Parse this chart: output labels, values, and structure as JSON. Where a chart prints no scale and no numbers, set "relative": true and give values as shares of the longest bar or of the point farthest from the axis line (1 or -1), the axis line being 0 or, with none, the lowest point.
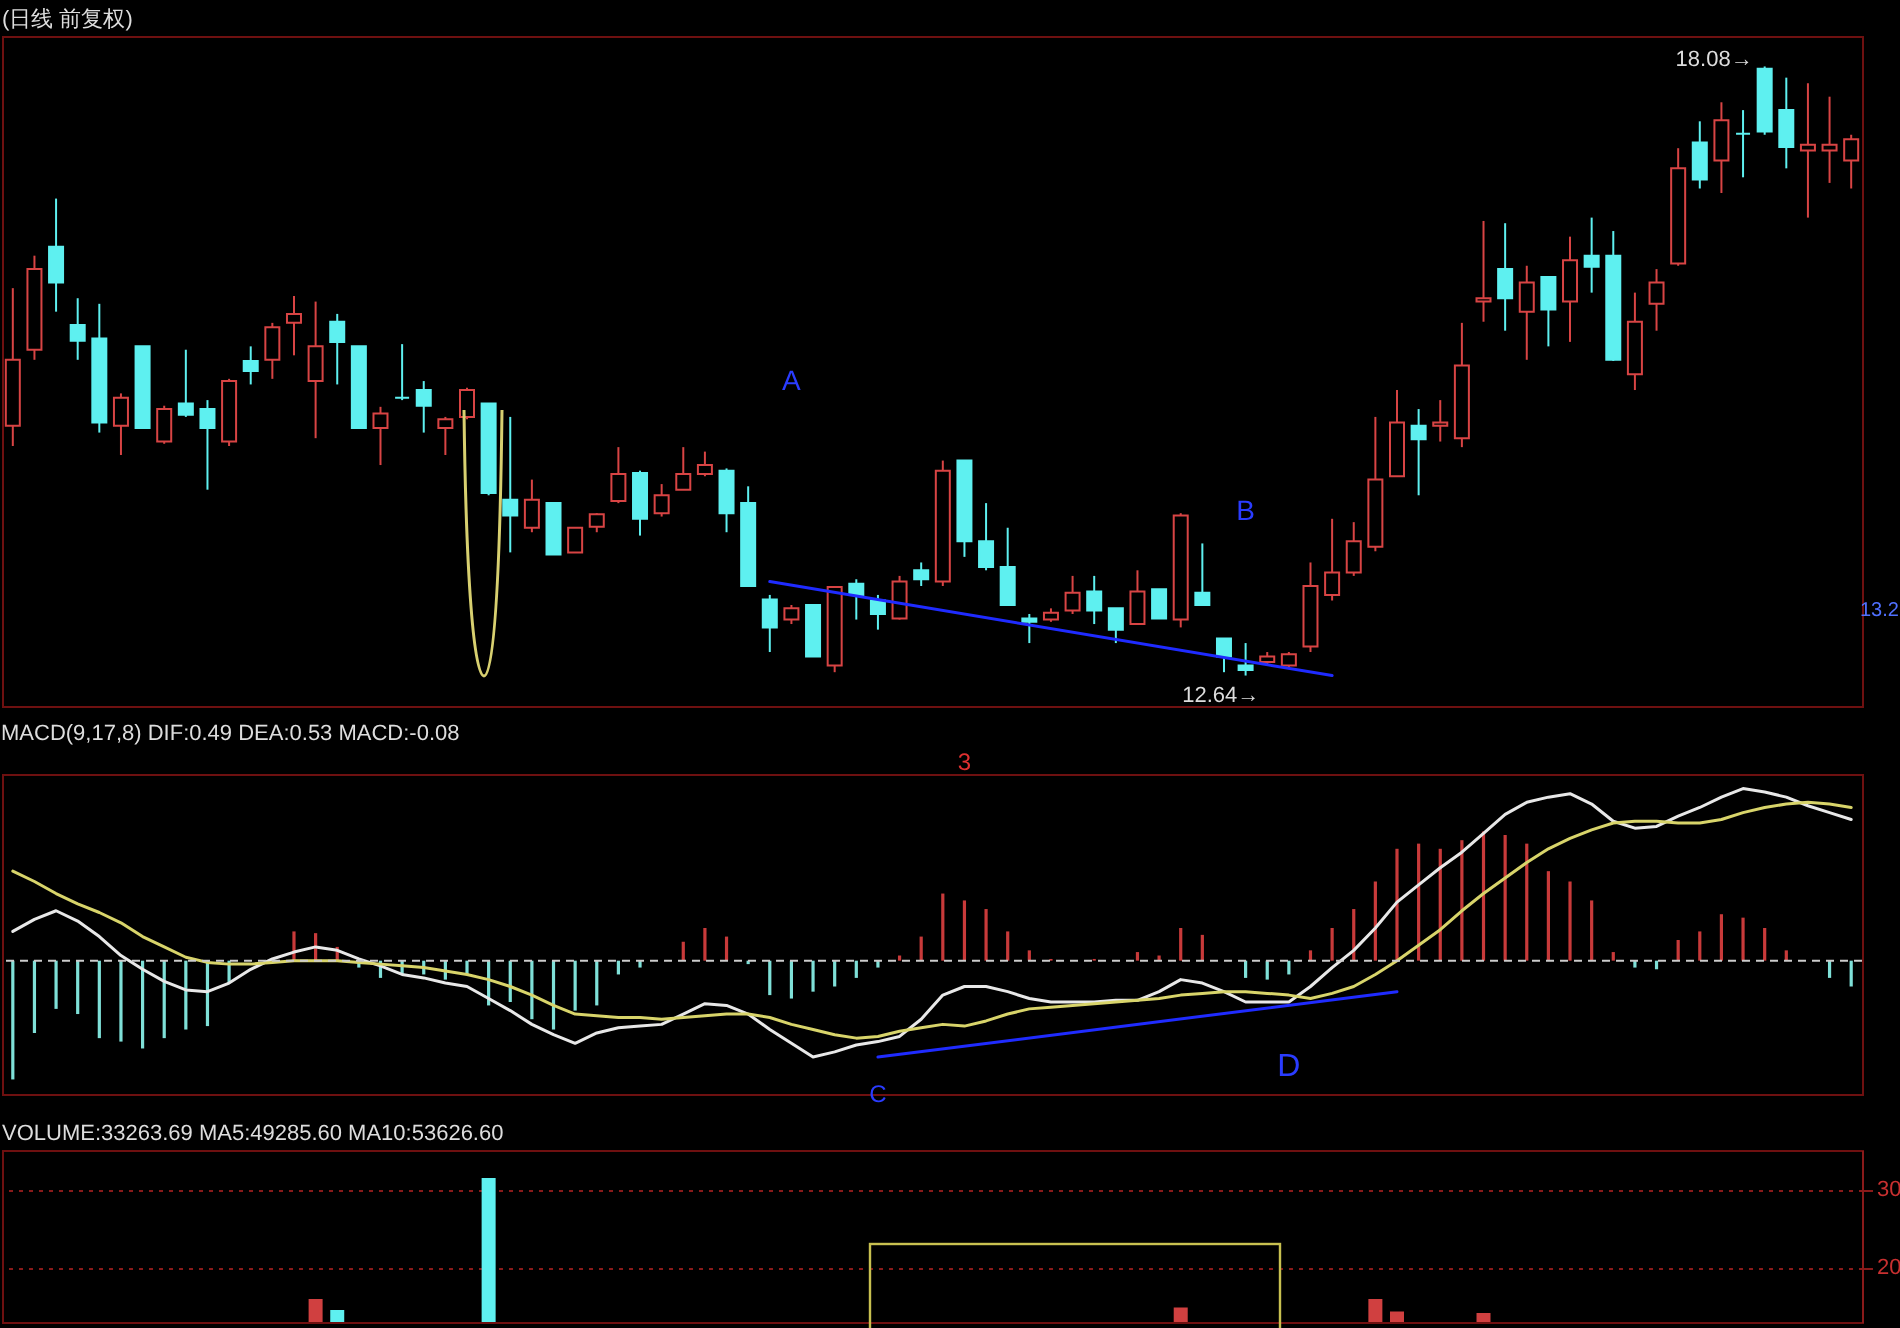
{
  "chart_data": [
    {
      "type": "candlestick",
      "title": "(日线 前复权)",
      "tick_labels": false,
      "categories": [
        null,
        null,
        null,
        null,
        null,
        null,
        null,
        null,
        null,
        null,
        null,
        null,
        null,
        null,
        null,
        null,
        null,
        null,
        null,
        null,
        null,
        null,
        null,
        null,
        null,
        null,
        null,
        null,
        null,
        null,
        null,
        null,
        null,
        null,
        null,
        null,
        null,
        null,
        null,
        null,
        null,
        null,
        null,
        null,
        null,
        null,
        null,
        null,
        null,
        null,
        null,
        null,
        null,
        null,
        null,
        null,
        null,
        null,
        null,
        null,
        null,
        null,
        null,
        null,
        null,
        null,
        null,
        null,
        null,
        null,
        null,
        null,
        null,
        null,
        null,
        null,
        null,
        null,
        null,
        null,
        null,
        null,
        null,
        null,
        null,
        null
      ],
      "ohlc": [
        [
          14.87,
          16.1,
          14.69,
          15.46
        ],
        [
          15.55,
          16.39,
          15.46,
          16.27
        ],
        [
          16.47,
          16.9,
          15.89,
          16.15
        ],
        [
          15.77,
          16.01,
          15.46,
          15.63
        ],
        [
          15.65,
          15.96,
          14.81,
          14.9
        ],
        [
          14.87,
          15.16,
          14.61,
          15.12
        ],
        [
          15.58,
          15.58,
          14.85,
          14.85
        ],
        [
          14.73,
          15.05,
          14.71,
          15.02
        ],
        [
          15.07,
          15.55,
          14.95,
          14.97
        ],
        [
          15.02,
          15.1,
          14.3,
          14.85
        ],
        [
          14.73,
          15.29,
          14.69,
          15.27
        ],
        [
          15.45,
          15.58,
          15.24,
          15.36
        ],
        [
          15.46,
          15.79,
          15.29,
          15.75
        ],
        [
          15.79,
          16.03,
          15.5,
          15.87
        ],
        [
          15.27,
          15.98,
          14.76,
          15.58
        ],
        [
          15.8,
          15.87,
          15.24,
          15.62
        ],
        [
          15.58,
          15.58,
          14.85,
          14.85
        ],
        [
          14.85,
          15.04,
          14.52,
          14.98
        ],
        [
          15.12,
          15.6,
          15.1,
          15.12
        ],
        [
          15.19,
          15.27,
          14.81,
          15.05
        ],
        [
          14.85,
          14.95,
          14.61,
          14.93
        ],
        [
          14.95,
          15.21,
          14.93,
          15.19
        ],
        [
          15.07,
          15.07,
          14.25,
          14.27
        ],
        [
          14.21,
          14.95,
          13.74,
          14.07
        ],
        [
          13.96,
          14.39,
          13.92,
          14.21
        ],
        [
          14.18,
          14.18,
          13.72,
          13.72
        ],
        [
          13.74,
          13.96,
          13.74,
          13.96
        ],
        [
          13.97,
          14.09,
          13.92,
          14.08
        ],
        [
          14.2,
          14.68,
          14.18,
          14.44
        ],
        [
          14.45,
          14.47,
          13.89,
          14.04
        ],
        [
          14.09,
          14.35,
          14.06,
          14.25
        ],
        [
          14.3,
          14.68,
          14.3,
          14.44
        ],
        [
          14.44,
          14.64,
          14.42,
          14.52
        ],
        [
          14.47,
          14.49,
          13.92,
          14.09
        ],
        [
          14.18,
          14.33,
          13.44,
          13.44
        ],
        [
          13.32,
          13.36,
          12.85,
          13.07
        ],
        [
          13.14,
          13.27,
          13.1,
          13.24
        ],
        [
          13.27,
          13.27,
          12.81,
          12.81
        ],
        [
          12.73,
          13.44,
          12.67,
          13.43
        ],
        [
          13.46,
          13.5,
          13.14,
          13.36
        ],
        [
          13.31,
          13.36,
          13.05,
          13.19
        ],
        [
          13.15,
          13.53,
          13.14,
          13.48
        ],
        [
          13.58,
          13.65,
          13.44,
          13.5
        ],
        [
          13.48,
          14.56,
          13.44,
          14.47
        ],
        [
          14.56,
          14.56,
          13.7,
          13.84
        ],
        [
          13.84,
          14.18,
          13.58,
          13.61
        ],
        [
          13.61,
          13.96,
          13.27,
          13.27
        ],
        [
          13.15,
          13.19,
          12.93,
          13.12
        ],
        [
          13.14,
          13.24,
          13.12,
          13.2
        ],
        [
          13.22,
          13.53,
          13.19,
          13.38
        ],
        [
          13.39,
          13.53,
          13.1,
          13.22
        ],
        [
          13.24,
          13.24,
          12.93,
          13.05
        ],
        [
          13.1,
          13.58,
          13.1,
          13.39
        ],
        [
          13.41,
          13.41,
          13.15,
          13.15
        ],
        [
          13.14,
          14.09,
          13.07,
          14.07
        ],
        [
          13.38,
          13.82,
          13.27,
          13.27
        ],
        [
          12.97,
          12.97,
          12.67,
          12.81
        ],
        [
          12.73,
          12.93,
          12.64,
          12.69
        ],
        [
          12.76,
          12.85,
          12.74,
          12.81
        ],
        [
          12.73,
          12.85,
          12.71,
          12.83
        ],
        [
          12.9,
          13.65,
          12.85,
          13.44
        ],
        [
          13.36,
          14.04,
          13.31,
          13.56
        ],
        [
          13.56,
          14.01,
          13.53,
          13.84
        ],
        [
          13.79,
          14.95,
          13.75,
          14.39
        ],
        [
          14.42,
          15.19,
          14.42,
          14.9
        ],
        [
          14.87,
          15.02,
          14.25,
          14.75
        ],
        [
          14.87,
          15.1,
          14.73,
          14.9
        ],
        [
          14.76,
          15.79,
          14.68,
          15.41
        ],
        [
          15.98,
          16.7,
          15.8,
          16.01
        ],
        [
          16.27,
          16.68,
          15.72,
          16.01
        ],
        [
          15.89,
          16.3,
          15.46,
          16.15
        ],
        [
          16.2,
          16.2,
          15.58,
          15.91
        ],
        [
          15.98,
          16.56,
          15.62,
          16.35
        ],
        [
          16.39,
          16.73,
          16.06,
          16.29
        ],
        [
          16.39,
          16.61,
          15.45,
          15.46
        ],
        [
          15.33,
          16.06,
          15.19,
          15.8
        ],
        [
          15.96,
          16.27,
          15.72,
          16.15
        ],
        [
          16.32,
          17.35,
          16.3,
          17.17
        ],
        [
          17.4,
          17.59,
          16.99,
          17.07
        ],
        [
          17.24,
          17.76,
          16.95,
          17.6
        ],
        [
          17.48,
          17.69,
          17.09,
          17.48
        ],
        [
          18.06,
          18.08,
          17.47,
          17.5
        ],
        [
          17.69,
          17.98,
          17.17,
          17.36
        ],
        [
          17.33,
          17.93,
          16.73,
          17.38
        ],
        [
          17.33,
          17.81,
          17.04,
          17.38
        ],
        [
          17.24,
          17.47,
          16.99,
          17.43
        ]
      ],
      "series": [
        {
          "type": "line",
          "color": "#1f2bff",
          "values": [
            null,
            null,
            null,
            null,
            null,
            null,
            null,
            null,
            null,
            null,
            null,
            null,
            null,
            null,
            null,
            null,
            null,
            null,
            null,
            null,
            null,
            null,
            null,
            null,
            null,
            null,
            null,
            null,
            null,
            null,
            null,
            null,
            null,
            null,
            null,
            13.48,
            null,
            null,
            null,
            null,
            null,
            null,
            null,
            null,
            null,
            null,
            null,
            null,
            null,
            null,
            null,
            null,
            null,
            null,
            null,
            null,
            null,
            null,
            null,
            null,
            null,
            12.64,
            null,
            null,
            null,
            null,
            null,
            null,
            null,
            null,
            null,
            null,
            null,
            null,
            null,
            null,
            null,
            null,
            null,
            null,
            null,
            null,
            null,
            null,
            null,
            null
          ]
        }
      ],
      "annotations": [
        "A",
        "B",
        "18.08→",
        {
          "text": "12.64→",
          "y": 12.64
        },
        "13.2"
      ]
    },
    {
      "type": "bar",
      "title": "MACD(9,17,8) DIF:0.49 DEA:0.53 MACD:-0.08",
      "relative": true,
      "tick_labels": false,
      "categories": [
        null,
        null,
        null,
        null,
        null,
        null,
        null,
        null,
        null,
        null,
        null,
        null,
        null,
        null,
        null,
        null,
        null,
        null,
        null,
        null,
        null,
        null,
        null,
        null,
        null,
        null,
        null,
        null,
        null,
        null,
        null,
        null,
        null,
        null,
        null,
        null,
        null,
        null,
        null,
        null,
        null,
        null,
        null,
        null,
        null,
        null,
        null,
        null,
        null,
        null,
        null,
        null,
        null,
        null,
        null,
        null,
        null,
        null,
        null,
        null,
        null,
        null,
        null,
        null,
        null,
        null,
        null,
        null,
        null,
        null,
        null,
        null,
        null,
        null,
        null,
        null,
        null,
        null,
        null,
        null,
        null,
        null,
        null,
        null,
        null,
        null
      ],
      "series": [
        {
          "type": "bar",
          "color": "#c83a3a",
          "values": [
            null,
            null,
            null,
            null,
            null,
            null,
            null,
            null,
            null,
            null,
            null,
            null,
            null,
            0.17,
            0.16,
            0.08,
            null,
            null,
            null,
            null,
            null,
            null,
            null,
            null,
            null,
            null,
            null,
            null,
            null,
            null,
            null,
            0.11,
            0.19,
            0.14,
            null,
            null,
            null,
            null,
            null,
            null,
            null,
            0.03,
            0.14,
            0.39,
            0.35,
            0.3,
            0.17,
            0.06,
            0.01,
            null,
            0.01,
            null,
            0.05,
            0.03,
            0.19,
            0.15,
            null,
            null,
            null,
            null,
            0.06,
            0.19,
            0.3,
            0.46,
            0.65,
            0.68,
            0.65,
            0.7,
            0.75,
            0.73,
            0.68,
            0.52,
            0.46,
            0.35,
            0.05,
            null,
            null,
            0.12,
            0.17,
            0.27,
            0.25,
            0.19,
            0.06,
            null,
            null,
            null
          ]
        },
        {
          "type": "bar",
          "color": "#7fe0d8",
          "values": [
            -0.69,
            -0.42,
            -0.28,
            -0.31,
            -0.45,
            -0.47,
            -0.51,
            -0.45,
            -0.4,
            -0.38,
            -0.13,
            null,
            null,
            null,
            null,
            null,
            -0.04,
            -0.1,
            -0.08,
            -0.08,
            -0.11,
            -0.08,
            -0.26,
            -0.24,
            -0.34,
            -0.4,
            -0.29,
            -0.26,
            -0.08,
            -0.04,
            null,
            null,
            null,
            null,
            -0.02,
            -0.2,
            -0.22,
            -0.18,
            -0.15,
            -0.1,
            -0.04,
            null,
            null,
            null,
            null,
            null,
            null,
            null,
            null,
            null,
            null,
            null,
            null,
            null,
            null,
            null,
            null,
            -0.1,
            -0.11,
            -0.08,
            null,
            null,
            null,
            null,
            null,
            null,
            null,
            null,
            null,
            null,
            null,
            null,
            null,
            null,
            null,
            -0.04,
            -0.05,
            null,
            null,
            null,
            null,
            null,
            null,
            null,
            -0.1,
            -0.15
          ]
        },
        {
          "type": "line",
          "color": "#e8e8e8",
          "values": [
            0.17,
            0.24,
            0.29,
            0.23,
            0.14,
            0.03,
            -0.05,
            -0.12,
            -0.17,
            -0.18,
            -0.13,
            -0.05,
            0.01,
            0.05,
            0.08,
            0.06,
            0.01,
            -0.03,
            -0.08,
            -0.1,
            -0.13,
            -0.15,
            -0.22,
            -0.29,
            -0.37,
            -0.43,
            -0.48,
            -0.42,
            -0.39,
            -0.38,
            -0.37,
            -0.31,
            -0.25,
            -0.26,
            -0.31,
            -0.4,
            -0.48,
            -0.56,
            -0.53,
            -0.49,
            -0.47,
            -0.44,
            -0.34,
            -0.2,
            -0.15,
            -0.15,
            -0.18,
            -0.22,
            -0.24,
            -0.24,
            -0.24,
            -0.23,
            -0.23,
            -0.18,
            -0.11,
            -0.13,
            -0.18,
            -0.24,
            -0.24,
            -0.24,
            -0.15,
            -0.04,
            0.06,
            0.19,
            0.34,
            0.44,
            0.54,
            0.63,
            0.74,
            0.85,
            0.92,
            0.95,
            0.97,
            0.91,
            0.81,
            0.77,
            0.78,
            0.84,
            0.89,
            0.95,
            1,
            0.98,
            0.95,
            0.9,
            0.86,
            0.82
          ]
        },
        {
          "type": "line",
          "color": "#d8d46a",
          "values": [
            0.52,
            0.46,
            0.39,
            0.33,
            0.28,
            0.22,
            0.14,
            0.08,
            0.02,
            -0.01,
            -0.02,
            -0.02,
            -0.01,
            0,
            0,
            0,
            -0.01,
            -0.02,
            -0.03,
            -0.04,
            -0.06,
            -0.08,
            -0.11,
            -0.15,
            -0.2,
            -0.26,
            -0.31,
            -0.32,
            -0.33,
            -0.33,
            -0.34,
            -0.33,
            -0.32,
            -0.31,
            -0.31,
            -0.33,
            -0.37,
            -0.4,
            -0.43,
            -0.45,
            -0.44,
            -0.41,
            -0.39,
            -0.37,
            -0.38,
            -0.35,
            -0.31,
            -0.28,
            -0.27,
            -0.26,
            -0.25,
            -0.24,
            -0.23,
            -0.22,
            -0.2,
            -0.19,
            -0.18,
            -0.18,
            -0.19,
            -0.2,
            -0.22,
            -0.19,
            -0.15,
            -0.08,
            0,
            0.09,
            0.18,
            0.29,
            0.39,
            0.48,
            0.57,
            0.65,
            0.71,
            0.76,
            0.8,
            0.81,
            0.81,
            0.8,
            0.8,
            0.82,
            0.86,
            0.89,
            0.91,
            0.92,
            0.91,
            0.89
          ]
        },
        {
          "type": "line",
          "color": "#1f2bff",
          "values": [
            null,
            null,
            null,
            null,
            null,
            null,
            null,
            null,
            null,
            null,
            null,
            null,
            null,
            null,
            null,
            null,
            null,
            null,
            null,
            null,
            null,
            null,
            null,
            null,
            null,
            null,
            null,
            null,
            null,
            null,
            null,
            null,
            null,
            null,
            null,
            null,
            null,
            null,
            null,
            null,
            -0.56,
            null,
            null,
            null,
            null,
            null,
            null,
            null,
            null,
            null,
            null,
            null,
            null,
            null,
            null,
            null,
            null,
            null,
            null,
            null,
            null,
            null,
            null,
            null,
            -0.18,
            null,
            null,
            null,
            null,
            null,
            null,
            null,
            null,
            null,
            null,
            null,
            null,
            null,
            null,
            null,
            null,
            null,
            null,
            null,
            null,
            null
          ]
        }
      ],
      "ref_lines": [
        {
          "axis": "y",
          "value": 0,
          "color": "#cccccc",
          "line_style": "dashed"
        }
      ],
      "annotations": [
        "C",
        "D",
        "3"
      ]
    },
    {
      "type": "bar",
      "title": "VOLUME:33263.69 MA5:49285.60 MA10:53626.60",
      "tick_labels": "y",
      "ylim": [
        12.95,
        35
      ],
      "yticks": [
        20,
        30
      ],
      "grid": true,
      "categories": [
        null,
        null,
        null,
        null,
        null,
        null,
        null,
        null,
        null,
        null,
        null,
        null,
        null,
        null,
        null,
        null,
        null,
        null,
        null,
        null,
        null,
        null,
        null,
        null,
        null,
        null,
        null,
        null,
        null,
        null,
        null,
        null,
        null,
        null,
        null,
        null,
        null,
        null,
        null,
        null,
        null,
        null,
        null,
        null,
        null,
        null,
        null,
        null,
        null,
        null,
        null,
        null,
        null,
        null,
        null,
        null,
        null,
        null,
        null,
        null,
        null,
        null,
        null,
        null,
        null,
        null,
        null,
        null,
        null,
        null,
        null,
        null,
        null,
        null,
        null,
        null,
        null,
        null,
        null,
        null,
        null,
        null,
        null,
        null,
        null,
        null
      ],
      "series": [
        {
          "type": "bar",
          "color": "#d04040",
          "values": [
            null,
            null,
            null,
            null,
            null,
            null,
            null,
            null,
            null,
            null,
            null,
            null,
            null,
            null,
            15.9,
            null,
            null,
            null,
            null,
            null,
            null,
            null,
            null,
            null,
            null,
            null,
            null,
            null,
            null,
            null,
            null,
            null,
            null,
            null,
            null,
            null,
            null,
            null,
            null,
            null,
            null,
            null,
            null,
            null,
            null,
            null,
            null,
            null,
            null,
            null,
            null,
            null,
            null,
            null,
            14.8,
            null,
            null,
            null,
            null,
            null,
            null,
            null,
            null,
            15.9,
            14.3,
            null,
            null,
            null,
            14.1,
            null,
            null,
            null,
            null,
            null,
            null,
            null,
            null,
            null,
            null,
            null,
            null,
            null,
            null,
            null,
            null,
            null
          ]
        },
        {
          "type": "bar",
          "color": "#5ef0f0",
          "values": [
            null,
            null,
            null,
            null,
            null,
            null,
            null,
            null,
            null,
            null,
            null,
            null,
            null,
            null,
            null,
            14.5,
            null,
            null,
            null,
            null,
            null,
            null,
            31.4,
            null,
            null,
            null,
            null,
            null,
            null,
            null,
            null,
            null,
            null,
            null,
            null,
            null,
            null,
            null,
            null,
            null,
            null,
            null,
            null,
            null,
            null,
            null,
            null,
            null,
            null,
            null,
            null,
            null,
            null,
            null,
            null,
            null,
            null,
            null,
            null,
            null,
            null,
            null,
            null,
            null,
            null,
            null,
            null,
            null,
            null,
            null,
            null,
            null,
            null,
            null,
            null,
            null,
            null,
            null,
            null,
            null,
            null,
            null,
            null,
            null,
            null,
            null
          ]
        }
      ]
    }
  ]
}
